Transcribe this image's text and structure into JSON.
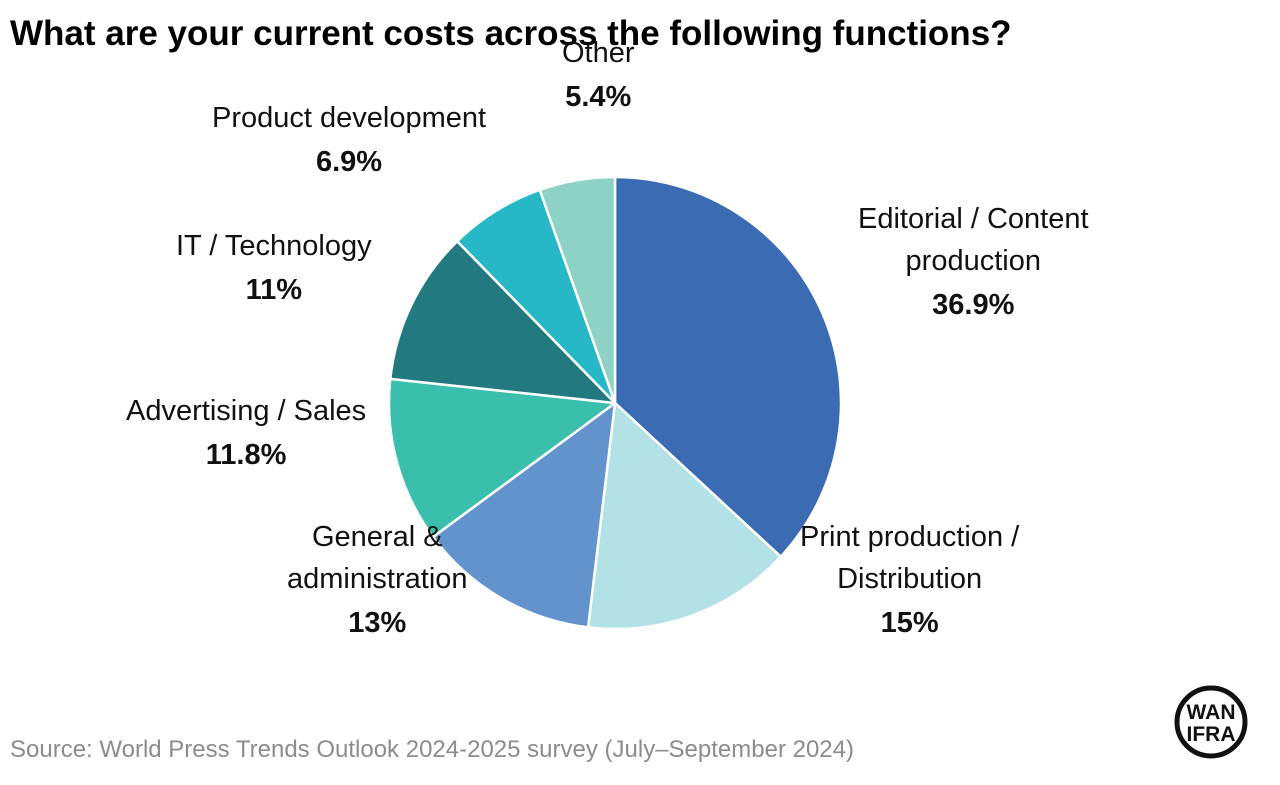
{
  "title": "What are your current costs across the following functions?",
  "source": "Source: World Press Trends Outlook 2024-2025 survey (July–September 2024)",
  "logo": {
    "line1": "WAN",
    "line2": "IFRA",
    "color": "#111111"
  },
  "chart_data": {
    "type": "pie",
    "title": "What are your current costs across the following functions?",
    "start": "12 o'clock, clockwise",
    "slices": [
      {
        "label": "Editorial / Content production",
        "display_label": [
          "Editorial / Content",
          "production"
        ],
        "value": 36.9,
        "display_value": "36.9%",
        "color": "#3a6bb3"
      },
      {
        "label": "Print production / Distribution",
        "display_label": [
          "Print production /",
          "Distribution"
        ],
        "value": 15,
        "display_value": "15%",
        "color": "#b2e1e6"
      },
      {
        "label": "General & administration",
        "display_label": [
          "General &",
          "administration"
        ],
        "value": 13,
        "display_value": "13%",
        "color": "#6293cd"
      },
      {
        "label": "Advertising / Sales",
        "display_label": [
          "Advertising / Sales"
        ],
        "value": 11.8,
        "display_value": "11.8%",
        "color": "#3abfad"
      },
      {
        "label": "IT / Technology",
        "display_label": [
          "IT / Technology"
        ],
        "value": 11,
        "display_value": "11%",
        "color": "#227a80"
      },
      {
        "label": "Product development",
        "display_label": [
          "Product development"
        ],
        "value": 6.9,
        "display_value": "6.9%",
        "color": "#26b8c6"
      },
      {
        "label": "Other",
        "display_label": [
          "Other"
        ],
        "value": 5.4,
        "display_value": "5.4%",
        "color": "#8ed1c5"
      }
    ]
  }
}
